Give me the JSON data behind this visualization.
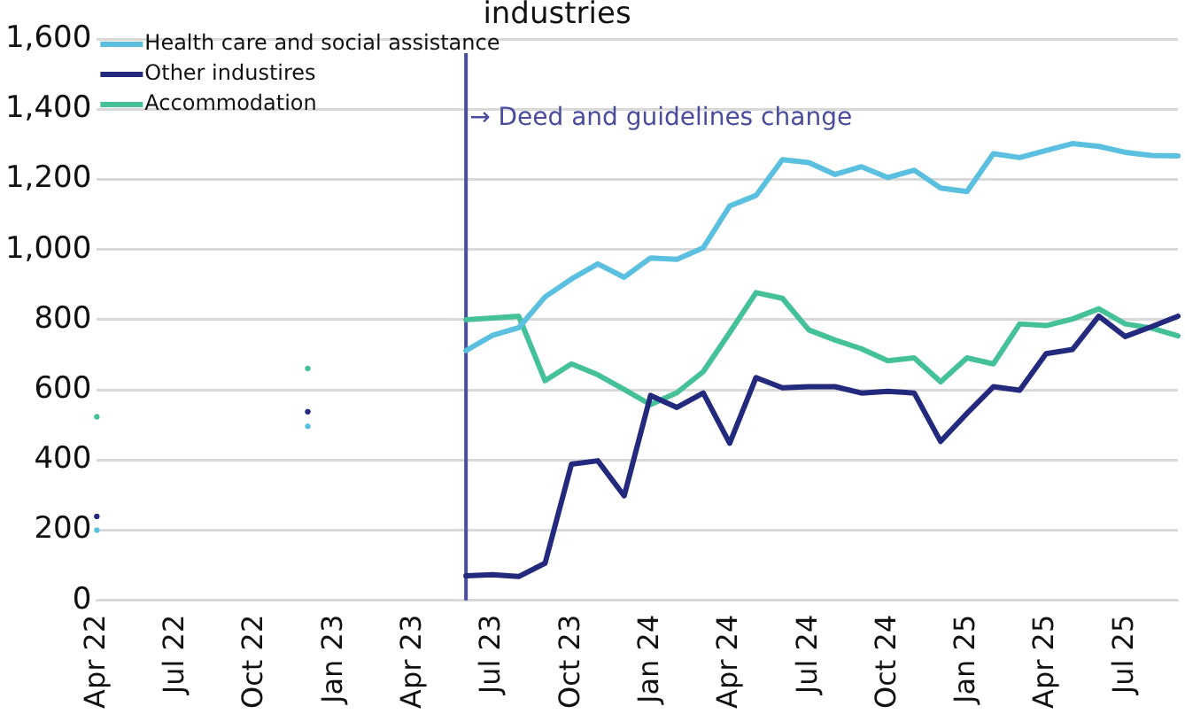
{
  "chart_data": {
    "type": "line",
    "title": "industries",
    "x": [
      "2022-04",
      "2022-05",
      "2022-06",
      "2022-07",
      "2022-08",
      "2022-09",
      "2022-10",
      "2022-11",
      "2022-12",
      "2023-01",
      "2023-02",
      "2023-03",
      "2023-04",
      "2023-05",
      "2023-06",
      "2023-07",
      "2023-08",
      "2023-09",
      "2023-10",
      "2023-11",
      "2023-12",
      "2024-01",
      "2024-02",
      "2024-03",
      "2024-04",
      "2024-05",
      "2024-06",
      "2024-07",
      "2024-08",
      "2024-09",
      "2024-10",
      "2024-11",
      "2024-12",
      "2025-01",
      "2025-02",
      "2025-03",
      "2025-04",
      "2025-05",
      "2025-06",
      "2025-07",
      "2025-08",
      "2025-09"
    ],
    "series": [
      {
        "name": "Health care and social assistance",
        "color": "#5bc0e0",
        "values": [
          200,
          null,
          null,
          null,
          null,
          null,
          null,
          null,
          496,
          null,
          null,
          null,
          null,
          null,
          712,
          755,
          777,
          865,
          916,
          959,
          921,
          976,
          972,
          1005,
          1124,
          1154,
          1256,
          1248,
          1214,
          1236,
          1205,
          1226,
          1175,
          1165,
          1273,
          1262,
          1282,
          1302,
          1294,
          1277,
          1268,
          1267
        ]
      },
      {
        "name": "Other industires",
        "color": "#232a7e",
        "values": [
          239,
          null,
          null,
          null,
          null,
          null,
          null,
          null,
          538,
          null,
          null,
          null,
          null,
          null,
          70,
          73,
          68,
          106,
          388,
          398,
          298,
          584,
          550,
          591,
          448,
          635,
          606,
          609,
          609,
          591,
          596,
          591,
          453,
          533,
          609,
          599,
          703,
          715,
          810,
          752,
          780,
          810
        ]
      },
      {
        "name": "Accommodation",
        "color": "#45c19a",
        "values": [
          523,
          null,
          null,
          null,
          null,
          null,
          null,
          null,
          661,
          null,
          null,
          null,
          null,
          null,
          800,
          805,
          810,
          626,
          674,
          643,
          601,
          558,
          592,
          652,
          763,
          877,
          861,
          771,
          742,
          717,
          683,
          691,
          623,
          691,
          674,
          788,
          783,
          802,
          831,
          788,
          776,
          754
        ]
      }
    ],
    "xlim": [
      "2022-04",
      "2025-09"
    ],
    "xticks": [
      {
        "value": "2022-04",
        "label": "Apr 22"
      },
      {
        "value": "2022-07",
        "label": "Jul 22"
      },
      {
        "value": "2022-10",
        "label": "Oct 22"
      },
      {
        "value": "2023-01",
        "label": "Jan 23"
      },
      {
        "value": "2023-04",
        "label": "Apr 23"
      },
      {
        "value": "2023-07",
        "label": "Jul 23"
      },
      {
        "value": "2023-10",
        "label": "Oct 23"
      },
      {
        "value": "2024-01",
        "label": "Jan 24"
      },
      {
        "value": "2024-04",
        "label": "Apr 24"
      },
      {
        "value": "2024-07",
        "label": "Jul 24"
      },
      {
        "value": "2024-10",
        "label": "Oct 24"
      },
      {
        "value": "2025-01",
        "label": "Jan 25"
      },
      {
        "value": "2025-04",
        "label": "Apr 25"
      },
      {
        "value": "2025-07",
        "label": "Jul 25"
      }
    ],
    "ylim": [
      0,
      1600
    ],
    "yticks": [
      {
        "value": 0,
        "label": "0"
      },
      {
        "value": 200,
        "label": "200"
      },
      {
        "value": 400,
        "label": "400"
      },
      {
        "value": 600,
        "label": "600"
      },
      {
        "value": 800,
        "label": "800"
      },
      {
        "value": 1000,
        "label": "1,000"
      },
      {
        "value": 1200,
        "label": "1,200"
      },
      {
        "value": 1400,
        "label": "1,400"
      },
      {
        "value": 1600,
        "label": "1,600"
      }
    ],
    "ref_lines": [
      {
        "axis": "x",
        "value": "2023-06",
        "label": "→ Deed and guidelines change",
        "color": "#4a4c9c"
      }
    ],
    "grid": "y",
    "legend": "top left",
    "marker": "none",
    "line_style": "solid"
  }
}
